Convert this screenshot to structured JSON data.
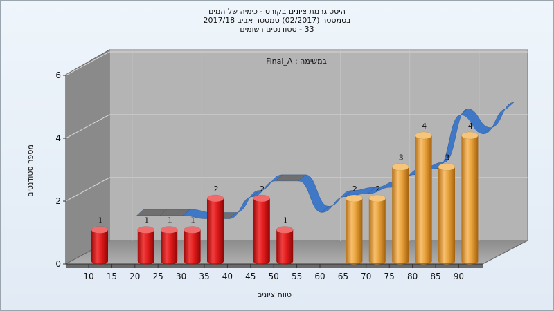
{
  "chart_data": {
    "type": "bar",
    "title": "היסטוגרמת ציונים בקורס - כימיה של המים",
    "subtitle_lines": [
      "בסמסטר  (02/2017)  סמסטר אביב 2017/18",
      "33 - סטודנטים רשומים"
    ],
    "annotation": "במשימה : Final_A",
    "xlabel": "טווח ציונים",
    "ylabel": "מספר סטודנטים",
    "x_ticks": [
      "10",
      "15",
      "20",
      "25",
      "30",
      "35",
      "40",
      "45",
      "50",
      "55",
      "60",
      "65",
      "70",
      "75",
      "80",
      "85",
      "90"
    ],
    "y_ticks": [
      "0",
      "2",
      "4",
      "6"
    ],
    "ylim": [
      0,
      6
    ],
    "grid": true,
    "bars": [
      {
        "x": 10,
        "value": 1,
        "color": "red"
      },
      {
        "x": 20,
        "value": 1,
        "color": "red"
      },
      {
        "x": 25,
        "value": 1,
        "color": "red"
      },
      {
        "x": 30,
        "value": 1,
        "color": "red"
      },
      {
        "x": 35,
        "value": 2,
        "color": "red"
      },
      {
        "x": 45,
        "value": 2,
        "color": "red"
      },
      {
        "x": 50,
        "value": 1,
        "color": "red"
      },
      {
        "x": 65,
        "value": 2,
        "color": "orange"
      },
      {
        "x": 70,
        "value": 2,
        "color": "orange"
      },
      {
        "x": 75,
        "value": 3,
        "color": "orange"
      },
      {
        "x": 80,
        "value": 4,
        "color": "orange"
      },
      {
        "x": 85,
        "value": 3,
        "color": "orange"
      },
      {
        "x": 90,
        "value": 4,
        "color": "orange"
      }
    ],
    "curve": [
      {
        "x": 15,
        "y": 1.1
      },
      {
        "x": 20,
        "y": 1.1
      },
      {
        "x": 25,
        "y": 1.1
      },
      {
        "x": 30,
        "y": 1.0
      },
      {
        "x": 35,
        "y": 1.0
      },
      {
        "x": 40,
        "y": 1.7
      },
      {
        "x": 45,
        "y": 2.2
      },
      {
        "x": 50,
        "y": 2.2
      },
      {
        "x": 55,
        "y": 1.2
      },
      {
        "x": 60,
        "y": 1.7
      },
      {
        "x": 65,
        "y": 1.8
      },
      {
        "x": 70,
        "y": 2.0
      },
      {
        "x": 75,
        "y": 2.4
      },
      {
        "x": 80,
        "y": 2.6
      },
      {
        "x": 85,
        "y": 4.3
      },
      {
        "x": 90,
        "y": 3.7
      },
      {
        "x": 95,
        "y": 4.5
      }
    ],
    "colors": {
      "red": "#e21c1c",
      "orange": "#e8a23a",
      "ribbon_blue": "#3f78c7",
      "ribbon_gray": "#6f6f6f",
      "wall_back": "#b3b3b3",
      "wall_side": "#8a8a8a",
      "floor": "#a0a0a0"
    }
  }
}
